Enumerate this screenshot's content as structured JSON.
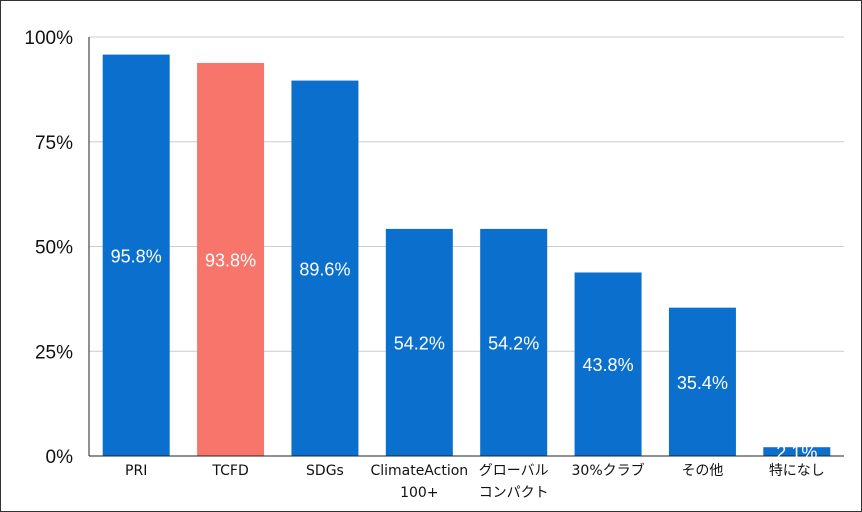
{
  "chart_data": {
    "type": "bar",
    "categories": [
      [
        "PRI"
      ],
      [
        "TCFD"
      ],
      [
        "SDGs"
      ],
      [
        "ClimateAction",
        "100+"
      ],
      [
        "グローバル",
        "コンパクト"
      ],
      [
        "30%クラブ"
      ],
      [
        "その他"
      ],
      [
        "特になし"
      ]
    ],
    "values": [
      95.8,
      93.8,
      89.6,
      54.2,
      54.2,
      43.8,
      35.4,
      2.1
    ],
    "data_labels": [
      "95.8%",
      "93.8%",
      "89.6%",
      "54.2%",
      "54.2%",
      "43.8%",
      "35.4%",
      "2.1%"
    ],
    "ylim": [
      0,
      100
    ],
    "yticks": [
      0,
      25,
      50,
      75,
      100
    ],
    "ytick_labels": [
      "0%",
      "25%",
      "50%",
      "75%",
      "100%"
    ],
    "grid": true,
    "legend": "none",
    "colors": {
      "default": "#0a6fcd",
      "highlight": "#f7756a",
      "highlight_index": 1,
      "grid": "#cccccc",
      "axis": "#222222"
    }
  }
}
